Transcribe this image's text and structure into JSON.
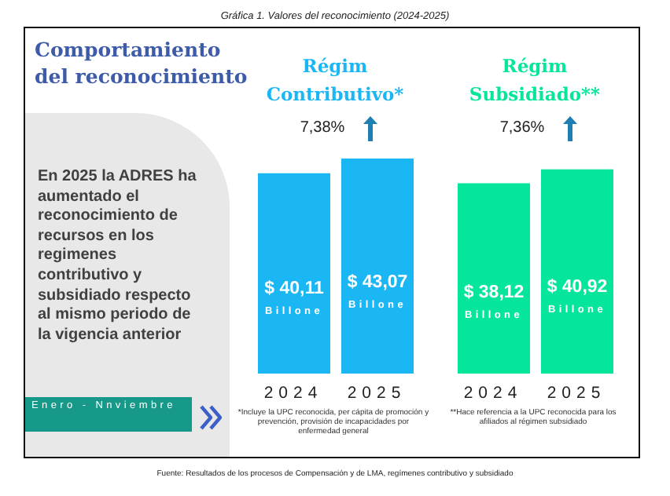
{
  "chart_data": [
    {
      "type": "other",
      "title": "Comportamiento del reconocimiento",
      "annotations": [
        "En 2025 la ADRES ha aumentado el reconocimiento de recursos en los regimenes contributivo y subsidiado respecto al mismo periodo de la vigencia anterior",
        "Enero - Nnviembre",
        "Gráfica 1. Valores del reconocimiento (2024-2025)",
        "Fuente: Resultados de los procesos de Compensación y de LMA, regímenes contributivo y subsidiado"
      ]
    },
    {
      "type": "bar",
      "title": "Régim Contributivo*",
      "subtitle": "7,38%",
      "categories": [
        "2024",
        "2025"
      ],
      "values": [
        40.11,
        43.07
      ],
      "value_labels": [
        "$ 40,11\nBillone",
        "$ 43,07\nBillone"
      ],
      "color": "#1bb7f5",
      "tick_labels": "x",
      "annotations": [
        "*Incluye la UPC reconocida, per cápita de promoción y prevención, provisión de incapacidades por enfermedad general"
      ]
    },
    {
      "type": "bar",
      "title": "Régim Subsidiado**",
      "subtitle": "7,36%",
      "categories": [
        "2024",
        "2025"
      ],
      "values": [
        38.12,
        40.92
      ],
      "value_labels": [
        "$ 38,12\nBillone",
        "$ 40,92\nBillone"
      ],
      "color": "#05e69c",
      "tick_labels": "x",
      "annotations": [
        "**Hace referencia a la UPC reconocida para los afiliados al régimen subsidiado"
      ]
    }
  ]
}
